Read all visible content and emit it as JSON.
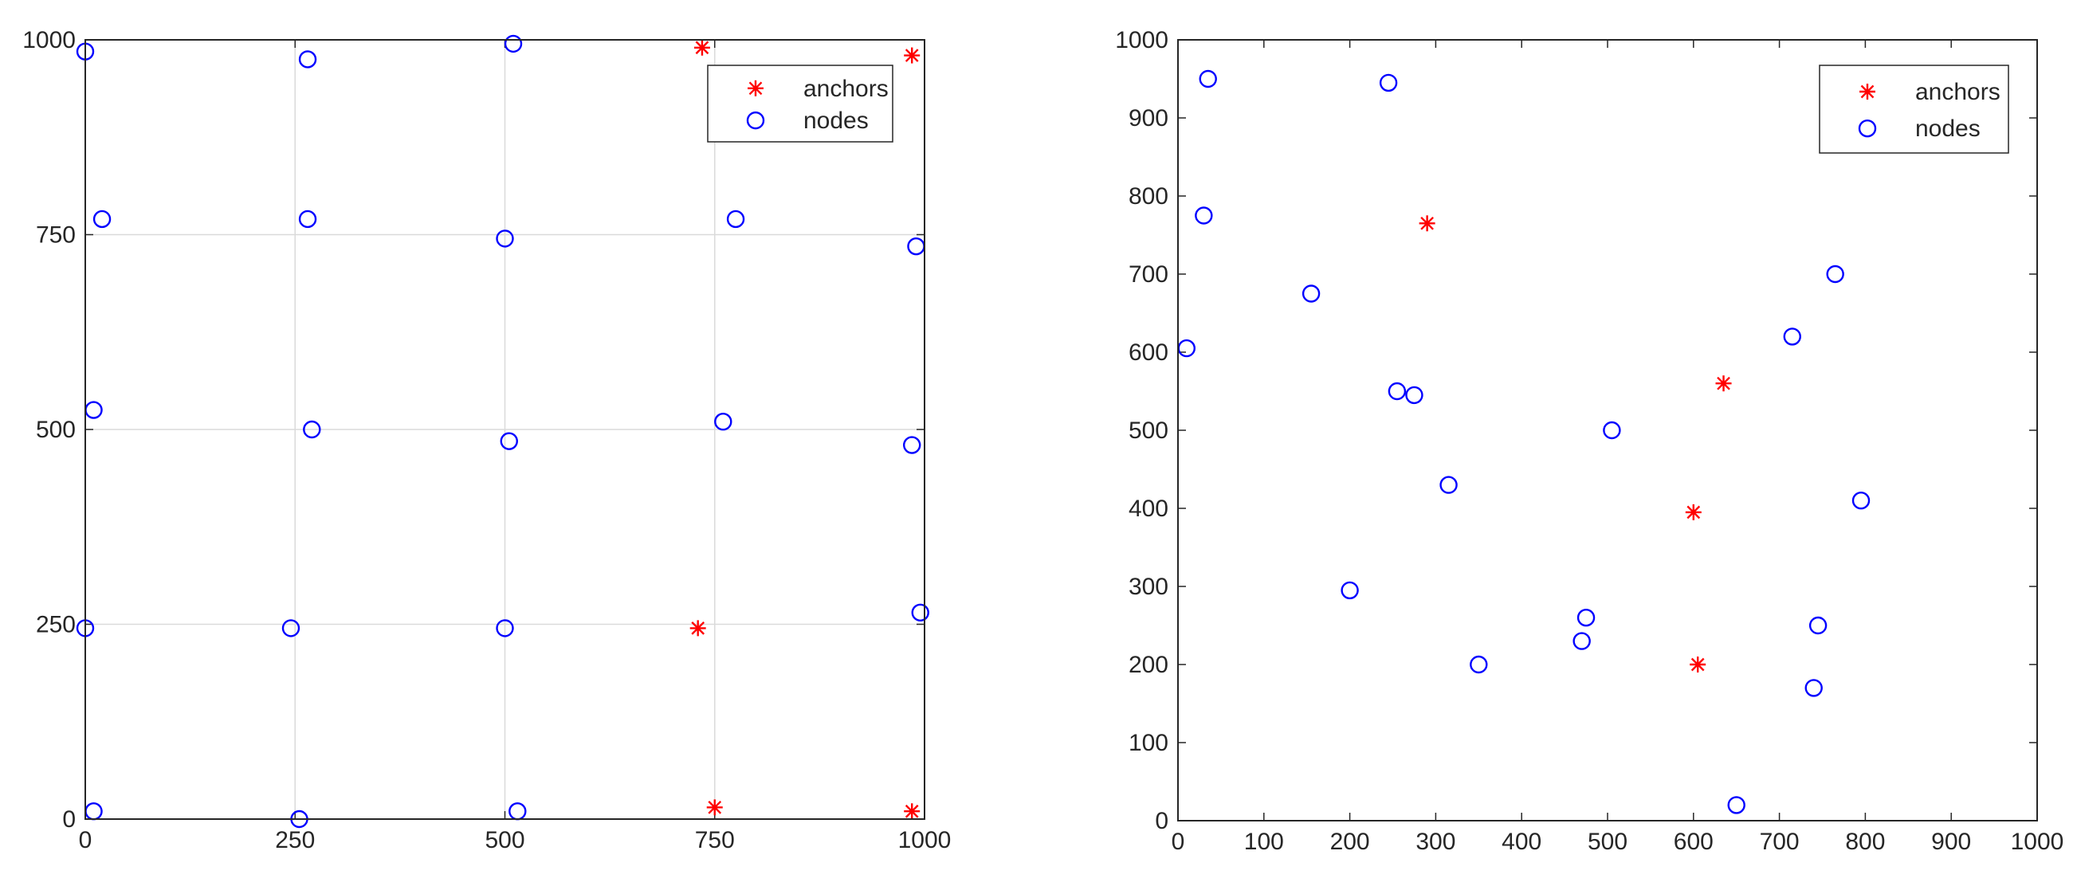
{
  "chart_data": [
    {
      "type": "scatter",
      "title": "",
      "xlabel": "",
      "ylabel": "",
      "xlim": [
        0,
        1000
      ],
      "ylim": [
        0,
        1000
      ],
      "xticks": [
        0,
        250,
        500,
        750,
        1000
      ],
      "yticks": [
        0,
        250,
        500,
        750,
        1000
      ],
      "grid": true,
      "legend": {
        "placement": "top-right",
        "entries": [
          "anchors",
          "nodes"
        ]
      },
      "series": [
        {
          "name": "anchors",
          "marker": "asterisk",
          "color": "#ff0000",
          "points": [
            [
              735,
              990
            ],
            [
              985,
              980
            ],
            [
              730,
              245
            ],
            [
              750,
              15
            ],
            [
              985,
              10
            ]
          ]
        },
        {
          "name": "nodes",
          "marker": "circle",
          "color": "#0000ff",
          "points": [
            [
              0,
              985
            ],
            [
              265,
              975
            ],
            [
              510,
              995
            ],
            [
              20,
              770
            ],
            [
              265,
              770
            ],
            [
              500,
              745
            ],
            [
              775,
              770
            ],
            [
              990,
              735
            ],
            [
              10,
              525
            ],
            [
              270,
              500
            ],
            [
              505,
              485
            ],
            [
              760,
              510
            ],
            [
              985,
              480
            ],
            [
              0,
              245
            ],
            [
              245,
              245
            ],
            [
              500,
              245
            ],
            [
              995,
              265
            ],
            [
              10,
              10
            ],
            [
              255,
              0
            ],
            [
              515,
              10
            ]
          ]
        }
      ]
    },
    {
      "type": "scatter",
      "title": "",
      "xlabel": "",
      "ylabel": "",
      "xlim": [
        0,
        1000
      ],
      "ylim": [
        0,
        1000
      ],
      "xticks": [
        0,
        100,
        200,
        300,
        400,
        500,
        600,
        700,
        800,
        900,
        1000
      ],
      "yticks": [
        0,
        100,
        200,
        300,
        400,
        500,
        600,
        700,
        800,
        900,
        1000
      ],
      "grid": false,
      "legend": {
        "placement": "top-right",
        "entries": [
          "anchors",
          "nodes"
        ]
      },
      "series": [
        {
          "name": "anchors",
          "marker": "asterisk",
          "color": "#ff0000",
          "points": [
            [
              290,
              765
            ],
            [
              635,
              560
            ],
            [
              600,
              395
            ],
            [
              605,
              200
            ]
          ]
        },
        {
          "name": "nodes",
          "marker": "circle",
          "color": "#0000ff",
          "points": [
            [
              35,
              950
            ],
            [
              245,
              945
            ],
            [
              30,
              775
            ],
            [
              155,
              675
            ],
            [
              10,
              605
            ],
            [
              255,
              550
            ],
            [
              275,
              545
            ],
            [
              315,
              430
            ],
            [
              200,
              295
            ],
            [
              350,
              200
            ],
            [
              505,
              500
            ],
            [
              475,
              260
            ],
            [
              470,
              230
            ],
            [
              715,
              620
            ],
            [
              765,
              700
            ],
            [
              795,
              410
            ],
            [
              745,
              250
            ],
            [
              740,
              170
            ],
            [
              650,
              20
            ]
          ]
        }
      ]
    }
  ]
}
